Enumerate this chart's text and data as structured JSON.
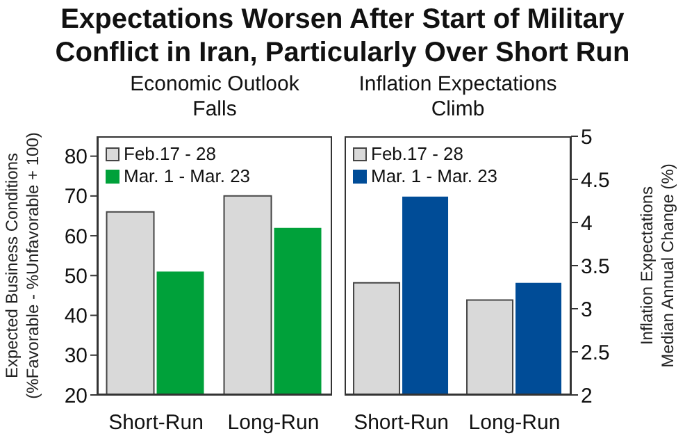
{
  "chart_data": [
    {
      "type": "bar",
      "title": "Expectations Worsen After Start of Military Conflict in Iran, Particularly Over Short Run",
      "subtitle": "Economic Outlook Falls",
      "categories": [
        "Short-Run",
        "Long-Run"
      ],
      "ylabel": "Expected Business Conditions\n(%Favorable - %Unfavorable + 100)",
      "series": [
        {
          "name": "Feb.17 - 28",
          "color": "#d9d9d9",
          "values": [
            66,
            70
          ]
        },
        {
          "name": "Mar. 1 - Mar. 23",
          "color": "#00a13a",
          "values": [
            51,
            62
          ]
        }
      ],
      "ylim": [
        20,
        85
      ],
      "yticks": [
        20,
        30,
        40,
        50,
        60,
        70,
        80
      ],
      "grid": false,
      "legend": "top left"
    },
    {
      "type": "bar",
      "subtitle": "Inflation Expectations Climb",
      "categories": [
        "Short-Run",
        "Long-Run"
      ],
      "y2label": "Inflation Expectations\nMedian Annual Change (%)",
      "series": [
        {
          "name": "Feb.17 - 28",
          "color": "#d9d9d9",
          "values": [
            3.3,
            3.1
          ],
          "axis": "y2"
        },
        {
          "name": "Mar. 1 - Mar. 23",
          "color": "#004c97",
          "values": [
            4.3,
            3.3
          ],
          "axis": "y2"
        }
      ],
      "y2lim": [
        2,
        5
      ],
      "y2ticks": [
        2,
        2.5,
        3,
        3.5,
        4,
        4.5,
        5
      ],
      "grid": false,
      "legend": "top left"
    }
  ]
}
